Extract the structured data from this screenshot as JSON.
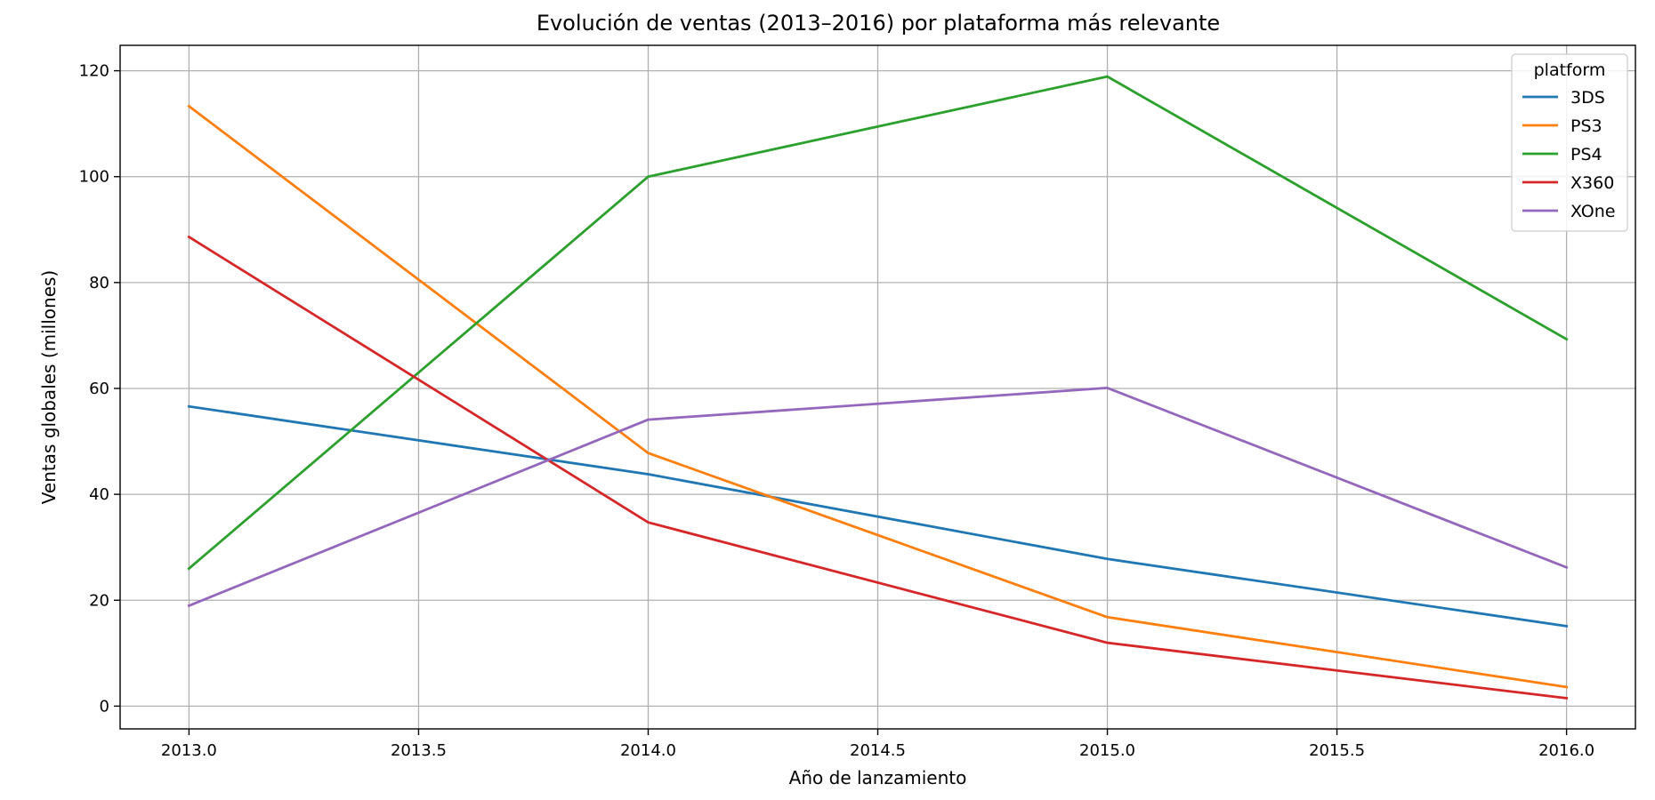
{
  "chart_data": {
    "type": "line",
    "title": "Evolución de ventas (2013–2016) por plataforma más relevante",
    "xlabel": "Año de lanzamiento",
    "ylabel": "Ventas globales (millones)",
    "x": [
      2013,
      2014,
      2015,
      2016
    ],
    "xlim": [
      2012.85,
      2016.15
    ],
    "ylim": [
      -4.3,
      124.8
    ],
    "xticks": [
      2013.0,
      2013.5,
      2014.0,
      2014.5,
      2015.0,
      2015.5,
      2016.0
    ],
    "xtick_labels": [
      "2013.0",
      "2013.5",
      "2014.0",
      "2014.5",
      "2015.0",
      "2015.5",
      "2016.0"
    ],
    "yticks": [
      0,
      20,
      40,
      60,
      80,
      100,
      120
    ],
    "ytick_labels": [
      "0",
      "20",
      "40",
      "60",
      "80",
      "100",
      "120"
    ],
    "grid": true,
    "legend": {
      "title": "platform",
      "position": "top-right"
    },
    "series": [
      {
        "name": "3DS",
        "color": "#1f77b4",
        "values": [
          56.6,
          43.8,
          27.8,
          15.1
        ]
      },
      {
        "name": "PS3",
        "color": "#ff7f0e",
        "values": [
          113.3,
          47.8,
          16.8,
          3.6
        ]
      },
      {
        "name": "PS4",
        "color": "#2ca02c",
        "values": [
          25.99,
          100.0,
          118.9,
          69.3
        ]
      },
      {
        "name": "X360",
        "color": "#d62728",
        "values": [
          88.6,
          34.7,
          11.96,
          1.5
        ]
      },
      {
        "name": "XOne",
        "color": "#9467bd",
        "values": [
          18.96,
          54.1,
          60.1,
          26.2
        ]
      }
    ]
  }
}
